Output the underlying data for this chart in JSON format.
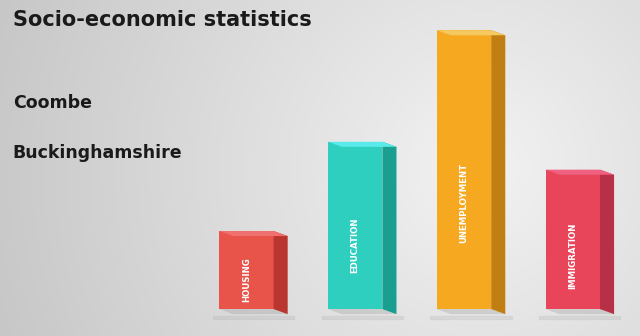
{
  "title_line1": "Socio-economic statistics",
  "title_line2": "Coombe",
  "title_line3": "Buckinghamshire",
  "categories": [
    "HOUSING",
    "EDUCATION",
    "UNEMPLOYMENT",
    "IMMIGRATION"
  ],
  "values": [
    0.28,
    0.6,
    1.0,
    0.5
  ],
  "front_colors": [
    "#e8534a",
    "#2ecfbf",
    "#f5a820",
    "#e8445a"
  ],
  "right_colors": [
    "#b83530",
    "#1a9e90",
    "#c07f10",
    "#b83048"
  ],
  "top_colors": [
    "#f07070",
    "#5aeaea",
    "#f5c860",
    "#f06080"
  ],
  "label_colors": [
    "#ffffff",
    "#ffffff",
    "#ffffff",
    "#ffffff"
  ],
  "background_color_left": "#c8c8c8",
  "background_color_right": "#e8e8e8",
  "shadow_color": "#aaaaaa"
}
